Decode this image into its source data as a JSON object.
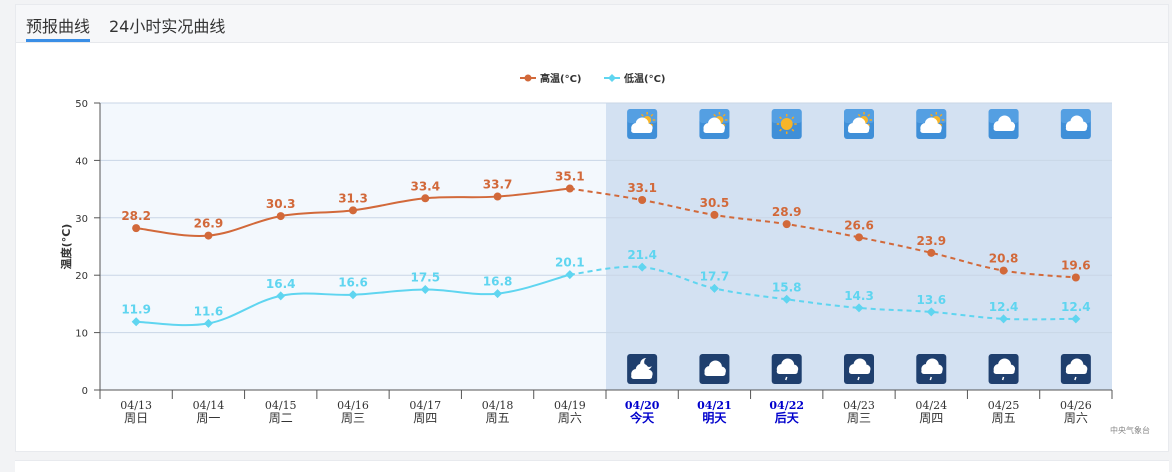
{
  "tabs": [
    {
      "label": "预报曲线",
      "active": true
    },
    {
      "label": "24小时实况曲线",
      "active": false
    }
  ],
  "credit": "中央气象台",
  "chart_data": {
    "type": "line",
    "ylabel": "温度(°C)",
    "ylim": [
      0,
      50
    ],
    "yticks": [
      0,
      10,
      20,
      30,
      40,
      50
    ],
    "grid": true,
    "legend_position": "top-center",
    "forecast_start_index": 7,
    "categories": [
      {
        "date": "04/13",
        "day": "周日",
        "highlight": false
      },
      {
        "date": "04/14",
        "day": "周一",
        "highlight": false
      },
      {
        "date": "04/15",
        "day": "周二",
        "highlight": false
      },
      {
        "date": "04/16",
        "day": "周三",
        "highlight": false
      },
      {
        "date": "04/17",
        "day": "周四",
        "highlight": false
      },
      {
        "date": "04/18",
        "day": "周五",
        "highlight": false
      },
      {
        "date": "04/19",
        "day": "周六",
        "highlight": false
      },
      {
        "date": "04/20",
        "day": "今天",
        "highlight": true
      },
      {
        "date": "04/21",
        "day": "明天",
        "highlight": true
      },
      {
        "date": "04/22",
        "day": "后天",
        "highlight": true
      },
      {
        "date": "04/23",
        "day": "周三",
        "highlight": false
      },
      {
        "date": "04/24",
        "day": "周四",
        "highlight": false
      },
      {
        "date": "04/25",
        "day": "周五",
        "highlight": false
      },
      {
        "date": "04/26",
        "day": "周六",
        "highlight": false
      }
    ],
    "series": [
      {
        "name": "高温(°C)",
        "color": "#d2693a",
        "values": [
          28.2,
          26.9,
          30.3,
          31.3,
          33.4,
          33.7,
          35.1,
          33.1,
          30.5,
          28.9,
          26.6,
          23.9,
          20.8,
          19.6
        ]
      },
      {
        "name": "低温(°C)",
        "color": "#5fd5f0",
        "values": [
          11.9,
          11.6,
          16.4,
          16.6,
          17.5,
          16.8,
          20.1,
          21.4,
          17.7,
          15.8,
          14.3,
          13.6,
          12.4,
          12.4
        ]
      }
    ],
    "day_icons": [
      "partly-cloudy-icon",
      "partly-cloudy-icon",
      "sunny-icon",
      "partly-cloudy-icon",
      "partly-cloudy-icon",
      "cloudy-icon",
      "cloudy-icon"
    ],
    "night_icons": [
      "night-cloudy-icon",
      "cloudy-icon",
      "light-rain-icon",
      "light-rain-icon",
      "light-rain-icon",
      "light-rain-icon",
      "light-rain-icon"
    ]
  }
}
